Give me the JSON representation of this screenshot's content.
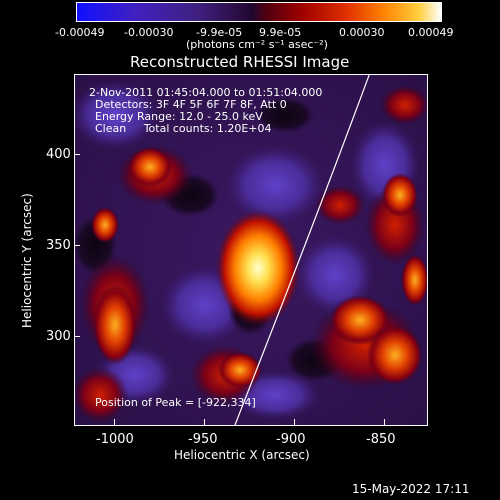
{
  "colorbar": {
    "tick_labels": [
      "-0.00049",
      "-0.00030",
      "-9.9e-05",
      "9.9e-05",
      "0.00030",
      "0.00049"
    ],
    "unit_label": "(photons cm⁻² s⁻¹ asec⁻²)"
  },
  "plot": {
    "title": "Reconstructed RHESSI Image",
    "info_lines": [
      "2-Nov-2011 01:45:04.000 to 01:51:04.000",
      "Detectors: 3F 4F 5F 6F 7F 8F, Att 0",
      "Energy Range: 12.0 - 25.0 keV",
      "Clean     Total counts: 1.20E+04"
    ],
    "peak_text": "Position of Peak = [-922,334]",
    "xlabel": "Heliocentric X (arcsec)",
    "ylabel": "Heliocentric Y (arcsec)",
    "x_ticks": [
      "-1000",
      "-950",
      "-900",
      "-850"
    ],
    "y_ticks": [
      "400",
      "350",
      "300"
    ]
  },
  "footer": {
    "timestamp": "15-May-2022 17:11"
  }
}
